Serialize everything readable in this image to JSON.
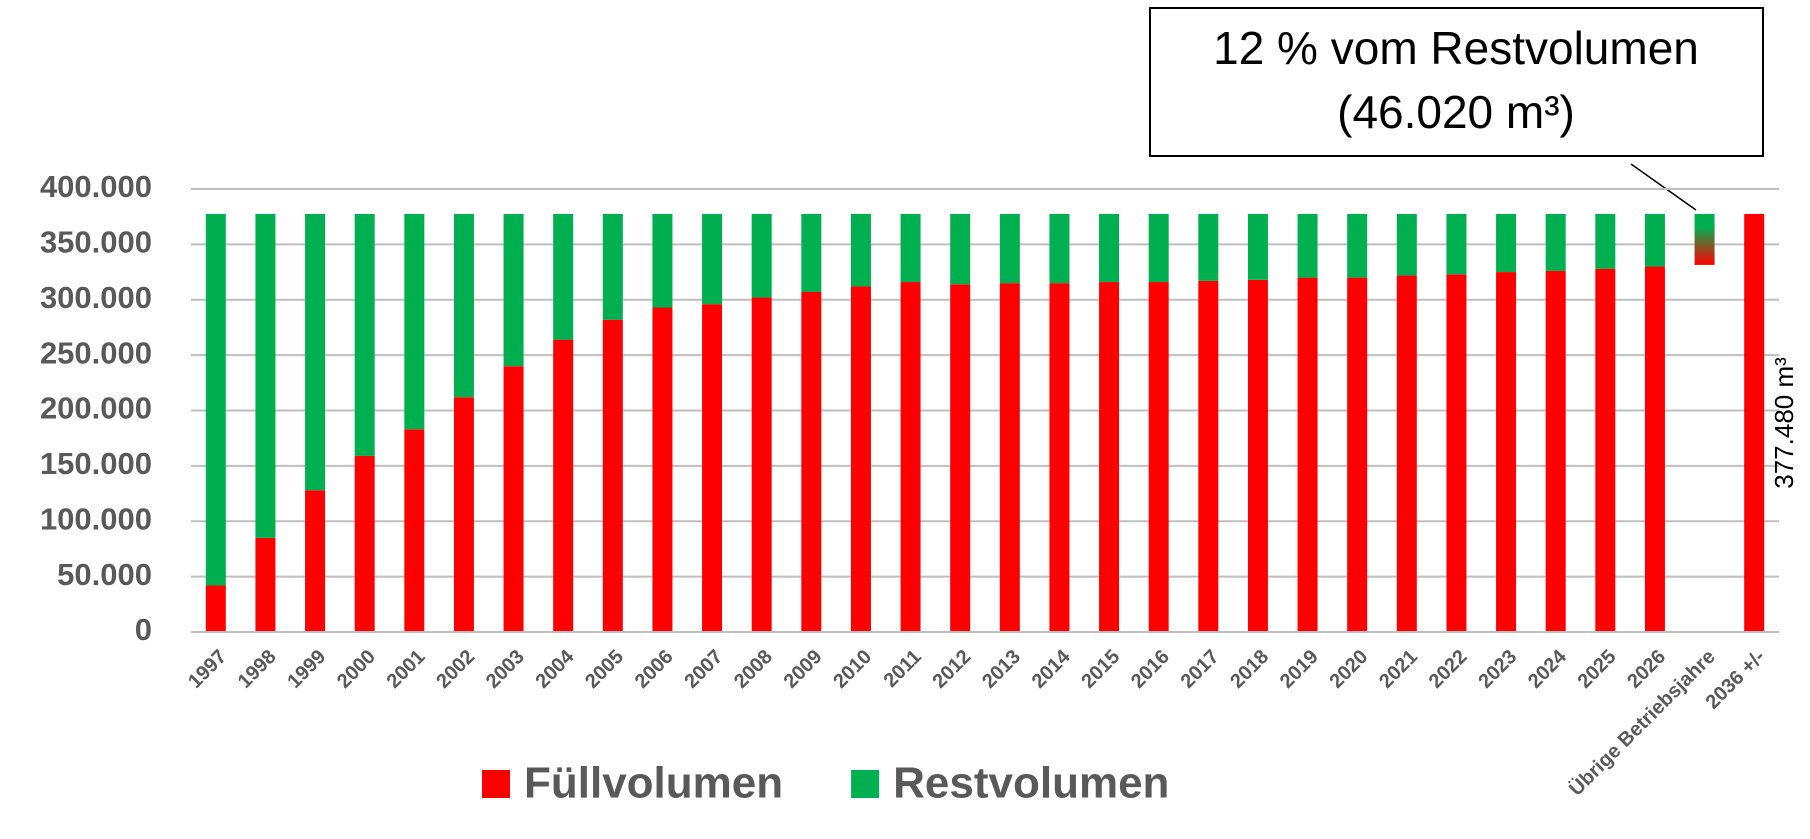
{
  "chart_data": {
    "type": "stacked_bar",
    "categories": [
      "1997",
      "1998",
      "1999",
      "2000",
      "2001",
      "2002",
      "2003",
      "2004",
      "2005",
      "2006",
      "2007",
      "2008",
      "2009",
      "2010",
      "2011",
      "2012",
      "2013",
      "2014",
      "2015",
      "2016",
      "2017",
      "2018",
      "2019",
      "2020",
      "2021",
      "2022",
      "2023",
      "2024",
      "2025",
      "2026",
      "Übrige Betriebsjahre",
      "2036 +/-"
    ],
    "series": [
      {
        "name": "Füllvolumen",
        "color": "#ff0000",
        "values": [
          42000,
          85000,
          128000,
          159000,
          183000,
          212000,
          240000,
          264000,
          282000,
          293000,
          296000,
          302000,
          307000,
          312000,
          316000,
          314000,
          315000,
          315000,
          316000,
          316000,
          317000,
          318000,
          320000,
          320000,
          322000,
          323000,
          325000,
          326000,
          328000,
          330000,
          null,
          377480
        ],
        "value_labels": [
          null,
          null,
          null,
          null,
          null,
          null,
          null,
          null,
          null,
          null,
          null,
          null,
          null,
          null,
          null,
          null,
          null,
          null,
          null,
          null,
          null,
          null,
          null,
          null,
          null,
          null,
          null,
          null,
          null,
          null,
          null,
          "377.480 m³"
        ]
      },
      {
        "name": "Restvolumen",
        "color": "#00b050",
        "values": [
          335480,
          292480,
          249480,
          218480,
          194480,
          165480,
          137480,
          113480,
          95480,
          84480,
          81480,
          75480,
          70480,
          65480,
          61480,
          63480,
          62480,
          62480,
          61480,
          61480,
          60480,
          59480,
          57480,
          57480,
          55480,
          54480,
          52480,
          51480,
          49480,
          47480,
          null,
          null
        ]
      }
    ],
    "floating_bar": {
      "category_index": 30,
      "start": 331460,
      "value": 46020
    },
    "annotation": {
      "lines": [
        "12 % vom Restvolumen",
        "(46.020 m³)"
      ]
    },
    "ylim": [
      0,
      400000
    ],
    "yticks": [
      0,
      {
        "value": 50000,
        "label": "50.000"
      },
      {
        "value": 100000,
        "label": "100.000"
      },
      {
        "value": 150000,
        "label": "150.000"
      },
      {
        "value": 200000,
        "label": "200.000"
      },
      {
        "value": 250000,
        "label": "250.000"
      },
      {
        "value": 300000,
        "label": "300.000"
      },
      {
        "value": 350000,
        "label": "350.000"
      },
      {
        "value": 400000,
        "label": "400.000"
      }
    ],
    "grid": true,
    "legend": "bottom"
  }
}
